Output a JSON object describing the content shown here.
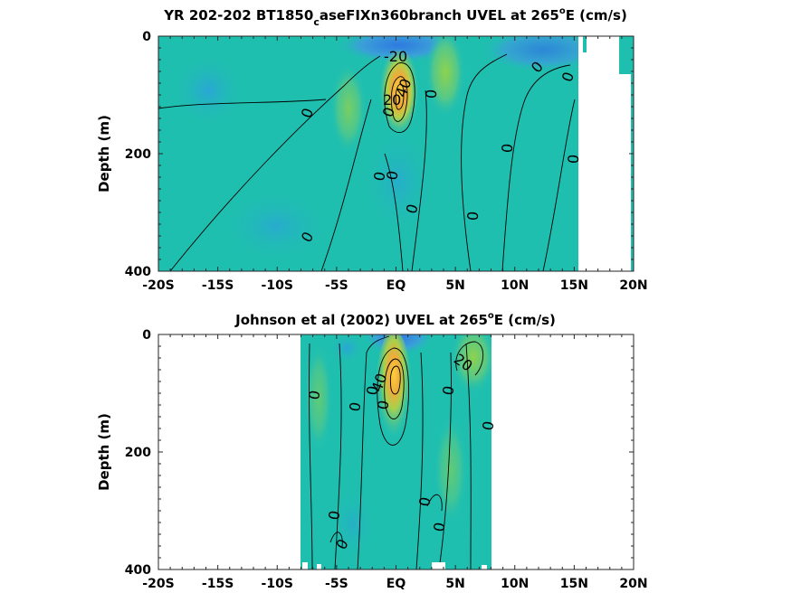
{
  "chart_data": [
    {
      "type": "heatmap",
      "title_main": "YR 202-202 BT1850",
      "title_sub": "c",
      "title_rest": "aseFIXn360branch UVEL at 265",
      "title_sup": "o",
      "title_end": "E (cm/s)",
      "ylabel": "Depth (m)",
      "xlim": [
        -20,
        20
      ],
      "ylim": [
        400,
        0
      ],
      "xticks": [
        -20,
        -15,
        -10,
        -5,
        0,
        5,
        10,
        15,
        20
      ],
      "xticklabels": [
        "-20S",
        "-15S",
        "-10S",
        "-5S",
        "EQ",
        "5N",
        "10N",
        "15N",
        "20N"
      ],
      "yticks": [
        0,
        200,
        400
      ],
      "yticklabels": [
        "0",
        "200",
        "400"
      ],
      "data_xrange": [
        -20,
        20
      ],
      "contour_labels": [
        "-20",
        "0",
        "0",
        "0",
        "0",
        "0",
        "0",
        "0",
        "0",
        "0",
        "0",
        "0",
        "0",
        "20",
        "40"
      ]
    },
    {
      "type": "heatmap",
      "title_main": "Johnson et al (2002) UVEL at 265",
      "title_sup": "o",
      "title_end": "E (cm/s)",
      "ylabel": "Depth (m)",
      "xlim": [
        -20,
        20
      ],
      "ylim": [
        400,
        0
      ],
      "xticks": [
        -20,
        -15,
        -10,
        -5,
        0,
        5,
        10,
        15,
        20
      ],
      "xticklabels": [
        "-20S",
        "-15S",
        "-10S",
        "-5S",
        "EQ",
        "5N",
        "10N",
        "15N",
        "20N"
      ],
      "yticks": [
        0,
        200,
        400
      ],
      "yticklabels": [
        "0",
        "200",
        "400"
      ],
      "data_xrange": [
        -8,
        8
      ],
      "contour_labels": [
        "20",
        "40",
        "0",
        "0",
        "0",
        "0",
        "0",
        "0",
        "0",
        "0",
        "0",
        "0"
      ]
    }
  ],
  "colors": {
    "background": "#ffffff",
    "field_base": "#1fbfb0",
    "negative": "#3a7fe0",
    "positive_mid": "#8fd14f",
    "positive_high": "#f5b83a",
    "max": "#f9d53a"
  }
}
